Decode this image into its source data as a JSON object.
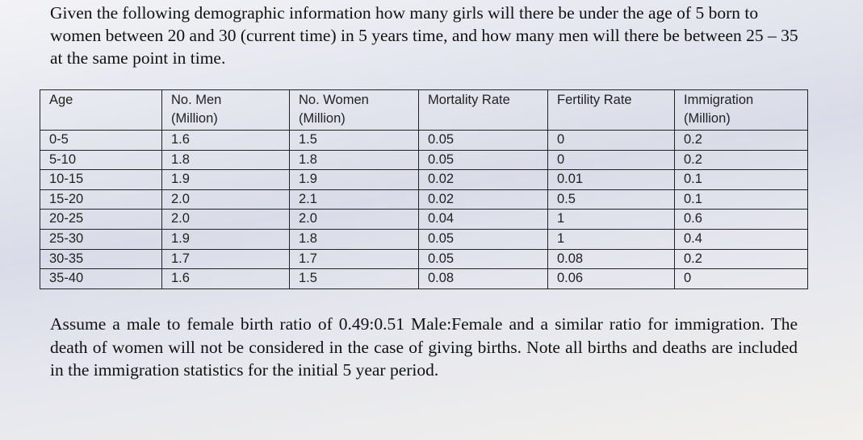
{
  "question": "Given the following demographic information how many girls will there be under the age of 5 born to women between 20 and 30 (current time) in 5 years time, and how many men will there be between 25 – 35 at the same point in time.",
  "table": {
    "header": [
      "Age",
      "No. Men\n(Million)",
      "No. Women\n(Million)",
      "Mortality Rate",
      "Fertility Rate",
      "Immigration\n(Million)"
    ],
    "rows": [
      [
        "0-5",
        "1.6",
        "1.5",
        "0.05",
        "0",
        "0.2"
      ],
      [
        "5-10",
        "1.8",
        "1.8",
        "0.05",
        "0",
        "0.2"
      ],
      [
        "10-15",
        "1.9",
        "1.9",
        "0.02",
        "0.01",
        "0.1"
      ],
      [
        "15-20",
        "2.0",
        "2.1",
        "0.02",
        "0.5",
        "0.1"
      ],
      [
        "20-25",
        "2.0",
        "2.0",
        "0.04",
        "1",
        "0.6"
      ],
      [
        "25-30",
        "1.9",
        "1.8",
        "0.05",
        "1",
        "0.4"
      ],
      [
        "30-35",
        "1.7",
        "1.7",
        "0.05",
        "0.08",
        "0.2"
      ],
      [
        "35-40",
        "1.6",
        "1.5",
        "0.08",
        "0.06",
        "0"
      ]
    ]
  },
  "note": "Assume a male to female birth ratio of 0.49:0.51 Male:Female and a similar ratio for immigration. The death of women will not be considered in the case of giving births. Note all births and deaths are included in the immigration statistics for the initial 5 year period."
}
